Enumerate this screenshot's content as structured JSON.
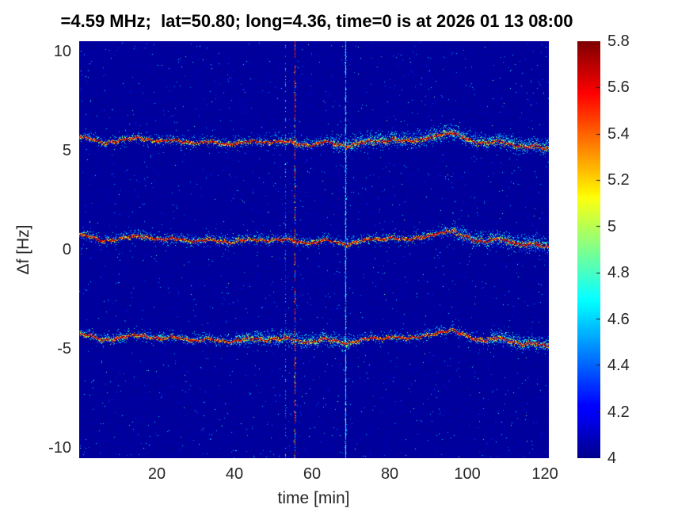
{
  "title": "=4.59 MHz;  lat=50.80; long=4.36, time=0 is at 2026 01 13 08:00",
  "chart_data": {
    "type": "heatmap",
    "title": "=4.59 MHz;  lat=50.80; long=4.36, time=0 is at 2026 01 13 08:00",
    "xlabel": "time [min]",
    "ylabel": "Δf [Hz]",
    "xlim": [
      0,
      121
    ],
    "ylim": [
      -10.52,
      10.52
    ],
    "x_ticks": [
      20,
      40,
      60,
      80,
      100,
      120
    ],
    "y_ticks": [
      10,
      5,
      0,
      -5,
      -10
    ],
    "grid": false,
    "colormap": "jet",
    "background_value": 4.0,
    "colorbar": {
      "min": 4.0,
      "max": 5.8,
      "ticks": [
        4,
        4.2,
        4.4,
        4.6,
        4.8,
        5,
        5.2,
        5.4,
        5.6,
        5.8
      ],
      "tick_labels": [
        "4",
        "4.2",
        "4.4",
        "4.6",
        "4.8",
        "5",
        "5.2",
        "5.4",
        "5.6",
        "5.8"
      ],
      "position": "right"
    },
    "doppler_wander_hz": {
      "t_min": [
        0,
        3,
        6,
        9,
        12,
        15,
        18,
        21,
        24,
        27,
        30,
        33,
        36,
        39,
        42,
        45,
        48,
        51,
        54,
        57,
        60,
        63,
        66,
        69,
        72,
        75,
        78,
        81,
        84,
        87,
        90,
        93,
        96,
        99,
        102,
        105,
        108,
        111,
        114,
        117,
        120
      ],
      "f_hz": [
        0.75,
        0.65,
        0.42,
        0.48,
        0.62,
        0.7,
        0.58,
        0.5,
        0.6,
        0.48,
        0.4,
        0.52,
        0.42,
        0.34,
        0.48,
        0.52,
        0.44,
        0.5,
        0.52,
        0.34,
        0.3,
        0.52,
        0.38,
        0.24,
        0.42,
        0.55,
        0.5,
        0.6,
        0.52,
        0.58,
        0.68,
        0.84,
        0.95,
        0.7,
        0.45,
        0.42,
        0.55,
        0.38,
        0.22,
        0.3,
        0.15
      ]
    },
    "traces": [
      {
        "name": "upper-doppler-trace",
        "offset_hz": 4.95,
        "peak_value": 5.8,
        "noisy_regions": [
          {
            "from": 65,
            "to": 121,
            "factor": 1.45
          }
        ]
      },
      {
        "name": "center-doppler-trace",
        "offset_hz": 0.0,
        "peak_value": 5.8,
        "noisy_regions": [
          {
            "from": 96,
            "to": 121,
            "factor": 1.6
          }
        ]
      },
      {
        "name": "lower-doppler-trace",
        "offset_hz": -5.0,
        "peak_value": 5.8,
        "noisy_regions": [
          {
            "from": 40,
            "to": 70,
            "factor": 1.35
          },
          {
            "from": 105,
            "to": 121,
            "factor": 1.4
          }
        ]
      }
    ],
    "interference_lines": [
      {
        "time_min": 53.0,
        "style": "dotted-faint",
        "typical_value": 4.6
      },
      {
        "time_min": 55.5,
        "style": "dashed-strong",
        "typical_value": 5.6
      },
      {
        "time_min": 68.6,
        "style": "speckled",
        "typical_value": 5.0
      }
    ]
  }
}
